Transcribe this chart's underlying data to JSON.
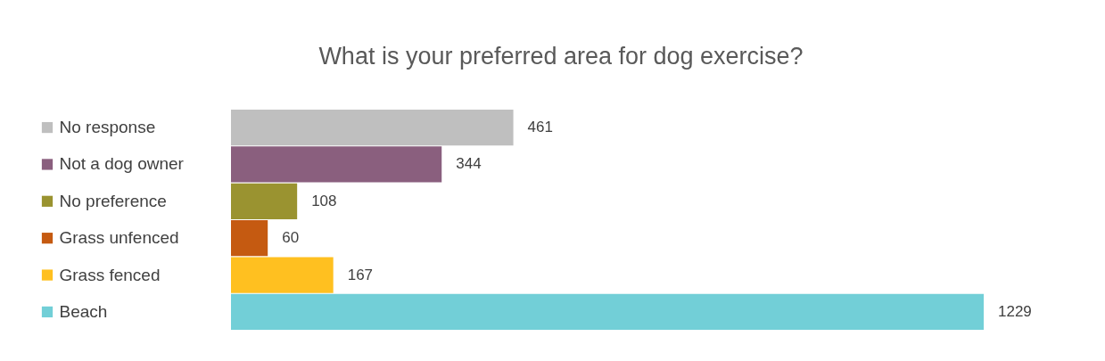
{
  "chart_data": {
    "type": "bar",
    "orientation": "horizontal",
    "title": "What is your preferred area for dog exercise?",
    "categories": [
      "No response",
      "Not a dog owner",
      "No preference",
      "Grass unfenced",
      "Grass fenced",
      "Beach"
    ],
    "values": [
      461,
      344,
      108,
      60,
      167,
      1229
    ],
    "colors": [
      "#bfbfbf",
      "#8a5f7e",
      "#9a9330",
      "#c55a11",
      "#ffc020",
      "#72cfd7"
    ],
    "data_labels": true,
    "tick_labels": "y"
  }
}
